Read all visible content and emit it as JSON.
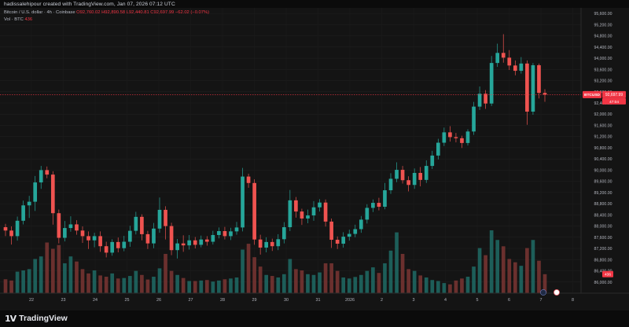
{
  "header": {
    "caption": "hadissalehipour created with TradingView.com, Jan 07, 2026 07:12 UTC"
  },
  "legend": {
    "symbol_line": "Bitcoin / U.S. dollar · 4h · Coinbase",
    "ohlc": "O92,760.02  H92,890.58  L92,440.81  C92,697.99  −62.02 (−0.07%)",
    "volume_label": "Vol · BTC",
    "volume_value": "436"
  },
  "price_axis": {
    "ticks": [
      "95,600.00",
      "95,200.00",
      "94,800.00",
      "94,400.00",
      "94,000.00",
      "93,600.00",
      "93,200.00",
      "92,800.00",
      "92,400.00",
      "92,000.00",
      "91,600.00",
      "91,200.00",
      "90,800.00",
      "90,400.00",
      "90,000.00",
      "89,600.00",
      "89,200.00",
      "88,800.00",
      "88,400.00",
      "88,000.00",
      "87,600.00",
      "87,200.00",
      "86,800.00",
      "86,400.00",
      "86,000.00",
      "85,600.00"
    ],
    "symbol_tag": "BTCUSD",
    "last_price": "92,697.99",
    "countdown": "47:04",
    "volume_tag": "436"
  },
  "time_axis": {
    "labels": [
      "22",
      "23",
      "24",
      "25",
      "26",
      "27",
      "28",
      "29",
      "30",
      "31",
      "2026",
      "2",
      "3",
      "4",
      "5",
      "6",
      "7",
      "8"
    ]
  },
  "footer": {
    "brand": "TradingView"
  },
  "colors": {
    "up": "#26a69a",
    "down": "#ef5350",
    "background": "#141414",
    "last_price_line": "#f23645"
  },
  "chart_data": {
    "type": "candlestick",
    "symbol": "BTCUSD",
    "interval": "4h",
    "ylim": [
      85600,
      95800
    ],
    "candles": [
      [
        87960,
        87840,
        88080,
        87640
      ],
      [
        87840,
        87640,
        87990,
        87340
      ],
      [
        87640,
        88190,
        88340,
        87480
      ],
      [
        88190,
        88740,
        88910,
        88060
      ],
      [
        88740,
        88870,
        89080,
        88290
      ],
      [
        88870,
        89560,
        89790,
        88540
      ],
      [
        89560,
        90000,
        90150,
        89330
      ],
      [
        90000,
        89840,
        90130,
        89710
      ],
      [
        89840,
        88460,
        89960,
        88050
      ],
      [
        88460,
        87580,
        88590,
        87380
      ],
      [
        87580,
        87930,
        88180,
        87450
      ],
      [
        87930,
        88060,
        88350,
        87800
      ],
      [
        88060,
        87840,
        88210,
        87690
      ],
      [
        87840,
        87640,
        87990,
        87400
      ],
      [
        87640,
        87490,
        87810,
        87180
      ],
      [
        87490,
        87640,
        87760,
        87240
      ],
      [
        87640,
        87280,
        87810,
        87080
      ],
      [
        87280,
        87050,
        87440,
        86880
      ],
      [
        87050,
        87430,
        87530,
        86940
      ],
      [
        87430,
        87210,
        87590,
        87060
      ],
      [
        87210,
        87440,
        87650,
        87100
      ],
      [
        87440,
        87830,
        88010,
        87260
      ],
      [
        87830,
        88330,
        88510,
        87700
      ],
      [
        88330,
        87710,
        88420,
        87490
      ],
      [
        87710,
        87380,
        87830,
        87180
      ],
      [
        87380,
        87910,
        88110,
        87210
      ],
      [
        87910,
        88580,
        89020,
        87760
      ],
      [
        88580,
        88000,
        88710,
        87520
      ],
      [
        88000,
        87140,
        88120,
        86960
      ],
      [
        87140,
        87380,
        87540,
        86840
      ],
      [
        87380,
        87310,
        87670,
        87080
      ],
      [
        87310,
        87490,
        87680,
        87160
      ],
      [
        87490,
        87330,
        87610,
        87200
      ],
      [
        87330,
        87520,
        87660,
        87240
      ],
      [
        87520,
        87440,
        87640,
        87300
      ],
      [
        87440,
        87680,
        87830,
        87340
      ],
      [
        87680,
        87820,
        87950,
        87560
      ],
      [
        87820,
        87640,
        87970,
        87520
      ],
      [
        87640,
        87810,
        87940,
        87500
      ],
      [
        87810,
        87950,
        88150,
        87690
      ],
      [
        87950,
        89770,
        90080,
        87810
      ],
      [
        89770,
        89540,
        89870,
        89370
      ],
      [
        89540,
        87520,
        89670,
        87330
      ],
      [
        87520,
        87230,
        87690,
        86980
      ],
      [
        87230,
        87430,
        87600,
        87060
      ],
      [
        87430,
        87280,
        87550,
        87110
      ],
      [
        87280,
        87530,
        87710,
        87140
      ],
      [
        87530,
        87960,
        88140,
        87380
      ],
      [
        87960,
        88920,
        89290,
        87820
      ],
      [
        88920,
        88520,
        89040,
        88300
      ],
      [
        88520,
        88270,
        88620,
        88040
      ],
      [
        88270,
        88380,
        88590,
        88100
      ],
      [
        88380,
        88670,
        88890,
        88190
      ],
      [
        88670,
        88840,
        88960,
        88520
      ],
      [
        88840,
        88160,
        88950,
        87980
      ],
      [
        88160,
        87510,
        88270,
        87220
      ],
      [
        87510,
        87370,
        87630,
        87180
      ],
      [
        87370,
        87620,
        87780,
        87230
      ],
      [
        87620,
        87720,
        87870,
        87480
      ],
      [
        87720,
        87890,
        88050,
        87600
      ],
      [
        87890,
        88230,
        88360,
        87760
      ],
      [
        88230,
        88650,
        88780,
        88090
      ],
      [
        88650,
        88830,
        88950,
        88500
      ],
      [
        88830,
        88690,
        89010,
        88560
      ],
      [
        88690,
        89280,
        89540,
        88600
      ],
      [
        89280,
        89690,
        89890,
        89150
      ],
      [
        89690,
        90010,
        90280,
        89570
      ],
      [
        90010,
        89640,
        90150,
        89520
      ],
      [
        89640,
        89470,
        89780,
        89240
      ],
      [
        89470,
        89900,
        90060,
        89330
      ],
      [
        89900,
        89650,
        90110,
        89420
      ],
      [
        89650,
        90150,
        90350,
        89540
      ],
      [
        90150,
        90520,
        90690,
        90040
      ],
      [
        90520,
        90980,
        91120,
        90380
      ],
      [
        90980,
        91350,
        91520,
        90860
      ],
      [
        91350,
        91180,
        91570,
        91020
      ],
      [
        91180,
        91140,
        91330,
        90990
      ],
      [
        91140,
        90970,
        91230,
        90790
      ],
      [
        90970,
        91380,
        91460,
        90880
      ],
      [
        91380,
        92270,
        92440,
        91260
      ],
      [
        92270,
        92730,
        92990,
        92150
      ],
      [
        92730,
        92380,
        92860,
        92190
      ],
      [
        92380,
        93830,
        94080,
        92290
      ],
      [
        93830,
        94190,
        94520,
        93690
      ],
      [
        94190,
        94020,
        94860,
        93840
      ],
      [
        94020,
        93740,
        94290,
        93580
      ],
      [
        93740,
        93550,
        93920,
        93390
      ],
      [
        93550,
        93810,
        94040,
        93450
      ],
      [
        93810,
        92090,
        93920,
        91620
      ],
      [
        92090,
        93750,
        93830,
        91980
      ],
      [
        93750,
        92760,
        93810,
        92560
      ],
      [
        92760,
        92698,
        92890,
        92441
      ]
    ],
    "volumes": [
      55,
      50,
      85,
      90,
      95,
      135,
      145,
      200,
      175,
      190,
      118,
      145,
      125,
      95,
      78,
      90,
      70,
      65,
      78,
      58,
      60,
      68,
      88,
      72,
      54,
      65,
      98,
      155,
      88,
      72,
      60,
      48,
      48,
      50,
      52,
      46,
      50,
      55,
      58,
      62,
      172,
      195,
      142,
      105,
      72,
      68,
      62,
      75,
      135,
      95,
      90,
      75,
      72,
      82,
      118,
      118,
      88,
      62,
      58,
      64,
      72,
      88,
      102,
      80,
      118,
      168,
      240,
      155,
      95,
      88,
      70,
      62,
      52,
      48,
      40,
      35,
      50,
      58,
      65,
      105,
      178,
      150,
      248,
      210,
      185,
      135,
      122,
      108,
      178,
      210,
      128,
      75
    ]
  }
}
